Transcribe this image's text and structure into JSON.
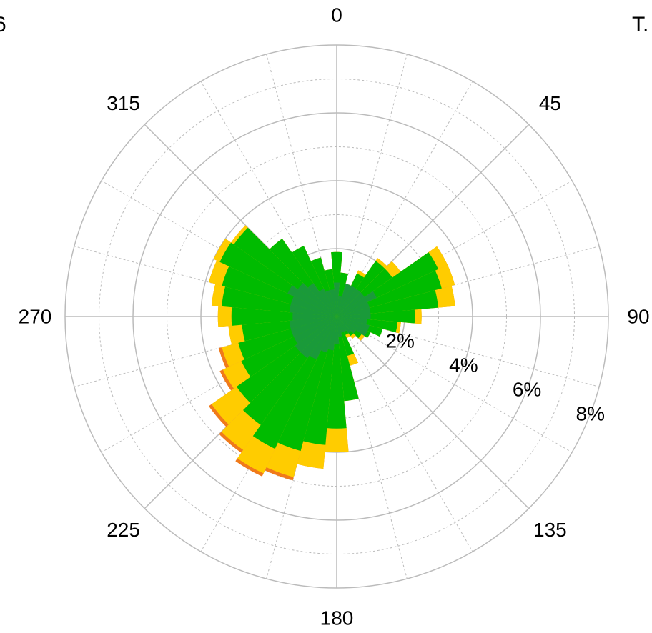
{
  "corner_labels": {
    "left": "6",
    "right": "T."
  },
  "chart_data": {
    "type": "polar_bar",
    "title": "",
    "sectors": 36,
    "sector_width_deg": 10,
    "direction_ticks": [
      {
        "angle": 0,
        "label": "0"
      },
      {
        "angle": 45,
        "label": "45"
      },
      {
        "angle": 90,
        "label": "90"
      },
      {
        "angle": 135,
        "label": "135"
      },
      {
        "angle": 180,
        "label": "180"
      },
      {
        "angle": 225,
        "label": "225"
      },
      {
        "angle": 270,
        "label": "270"
      },
      {
        "angle": 315,
        "label": "315"
      }
    ],
    "radial_ticks": [
      {
        "value": 2,
        "label": "2%"
      },
      {
        "value": 4,
        "label": "4%"
      },
      {
        "value": 6,
        "label": "6%"
      },
      {
        "value": 8,
        "label": "8%"
      }
    ],
    "radial_max": 8,
    "grid": true,
    "colors": {
      "inner": "#1a9a3a",
      "mid": "#00bb00",
      "outer": "#ffcc00",
      "tip": "#f07a1a",
      "grid": "#bbbbbb"
    },
    "directions": [
      0,
      10,
      20,
      30,
      40,
      50,
      60,
      70,
      80,
      90,
      100,
      110,
      120,
      130,
      140,
      150,
      160,
      170,
      180,
      190,
      200,
      210,
      220,
      230,
      240,
      250,
      260,
      270,
      280,
      290,
      300,
      310,
      320,
      330,
      340,
      350
    ],
    "series": [
      {
        "values": [
          1.0,
          0.6,
          1.0,
          1.0,
          1.0,
          1.0,
          1.3,
          1.0,
          1.0,
          1.0,
          0.9,
          1.0,
          1.0,
          0.7,
          0.6,
          0.5,
          0.5,
          0.6,
          0.8,
          1.0,
          1.1,
          1.4,
          1.5,
          1.5,
          1.4,
          1.4,
          1.4,
          1.3,
          1.4,
          1.4,
          1.6,
          1.4,
          1.2,
          0.9,
          0.8,
          0.8
        ]
      },
      {
        "values": [
          1.9,
          1.3,
          1.0,
          1.4,
          2.0,
          2.0,
          3.3,
          3.2,
          3.0,
          2.3,
          1.8,
          1.4,
          1.1,
          0.9,
          0.7,
          0.6,
          1.2,
          2.5,
          3.3,
          3.8,
          4.1,
          4.3,
          3.9,
          3.6,
          3.1,
          3.0,
          2.8,
          3.1,
          3.4,
          3.5,
          3.8,
          3.7,
          2.8,
          2.3,
          1.8,
          1.4
        ]
      },
      {
        "values": [
          1.9,
          1.3,
          1.0,
          1.5,
          2.1,
          2.3,
          3.6,
          3.6,
          3.5,
          2.5,
          1.9,
          1.4,
          1.1,
          1.0,
          0.8,
          0.7,
          1.5,
          2.5,
          4.0,
          4.5,
          4.9,
          5.1,
          4.8,
          4.5,
          3.7,
          3.5,
          3.2,
          3.5,
          3.7,
          3.9,
          4.0,
          3.8,
          2.8,
          2.3,
          1.8,
          1.4
        ]
      },
      {
        "values": [
          1.9,
          1.3,
          1.0,
          1.5,
          2.1,
          2.3,
          3.6,
          3.6,
          3.5,
          2.5,
          1.9,
          1.4,
          1.1,
          1.0,
          0.8,
          0.7,
          1.5,
          2.5,
          4.0,
          4.5,
          5.0,
          5.2,
          4.9,
          4.6,
          3.8,
          3.6,
          3.2,
          3.5,
          3.7,
          3.9,
          4.0,
          3.8,
          2.8,
          2.3,
          1.8,
          1.4
        ]
      }
    ]
  }
}
